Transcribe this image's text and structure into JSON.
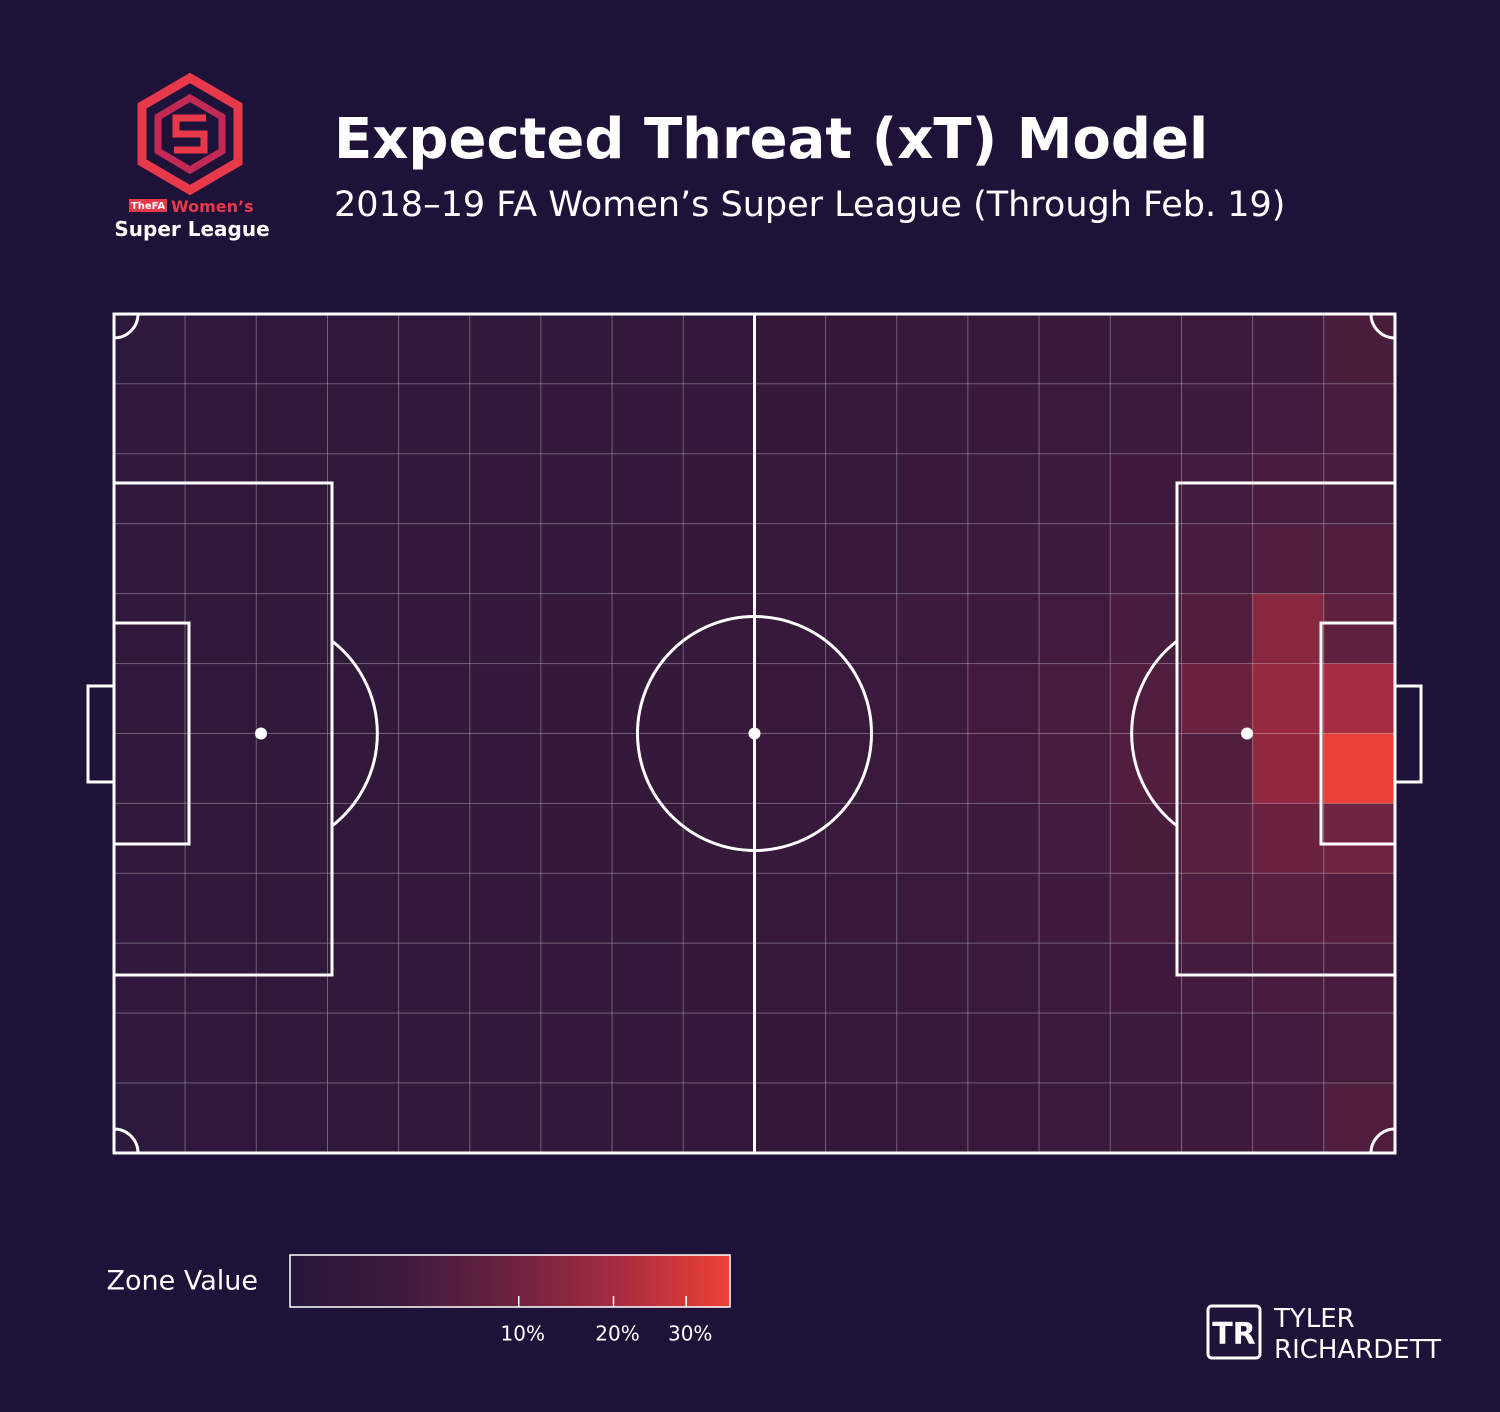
{
  "chart_data": {
    "type": "heatmap",
    "title": "Expected Threat (xT) Model",
    "subtitle": "2018–19 FA Women’s Super League (Through Feb. 19)",
    "values": [
      [
        0.3,
        0.4,
        0.4,
        0.5,
        0.5,
        0.6,
        0.6,
        0.7,
        0.7,
        0.9,
        1.0,
        1.2,
        1.3,
        1.5,
        1.7,
        2.0,
        2.4,
        4.0
      ],
      [
        0.4,
        0.4,
        0.5,
        0.5,
        0.6,
        0.6,
        0.7,
        0.8,
        0.8,
        1.0,
        1.1,
        1.3,
        1.5,
        1.7,
        2.0,
        2.4,
        3.0,
        3.5
      ],
      [
        0.4,
        0.5,
        0.5,
        0.6,
        0.6,
        0.7,
        0.8,
        0.8,
        0.9,
        1.1,
        1.3,
        1.5,
        1.7,
        2.0,
        2.5,
        3.0,
        3.5,
        3.8
      ],
      [
        0.4,
        0.5,
        0.5,
        0.6,
        0.7,
        0.7,
        0.8,
        0.9,
        1.0,
        1.2,
        1.4,
        1.7,
        2.0,
        2.4,
        3.0,
        3.6,
        4.5,
        4.5
      ],
      [
        0.5,
        0.5,
        0.6,
        0.6,
        0.7,
        0.8,
        0.9,
        1.0,
        1.1,
        1.3,
        1.6,
        1.9,
        2.3,
        2.8,
        3.5,
        5.0,
        14.0,
        7.0
      ],
      [
        0.5,
        0.5,
        0.6,
        0.7,
        0.7,
        0.8,
        0.9,
        1.0,
        1.2,
        1.5,
        1.8,
        2.2,
        2.8,
        3.5,
        4.5,
        9.0,
        17.0,
        20.0
      ],
      [
        0.5,
        0.5,
        0.6,
        0.7,
        0.7,
        0.8,
        0.9,
        1.0,
        1.2,
        1.5,
        1.8,
        2.2,
        2.8,
        3.5,
        5.0,
        4.5,
        16.0,
        36.0
      ],
      [
        0.5,
        0.5,
        0.6,
        0.6,
        0.7,
        0.8,
        0.9,
        1.0,
        1.1,
        1.3,
        1.6,
        1.9,
        2.3,
        3.0,
        4.0,
        6.0,
        9.0,
        10.0
      ],
      [
        0.4,
        0.5,
        0.5,
        0.6,
        0.7,
        0.7,
        0.8,
        0.9,
        1.0,
        1.2,
        1.4,
        1.7,
        2.0,
        2.5,
        3.5,
        4.5,
        6.0,
        5.5
      ],
      [
        0.4,
        0.5,
        0.5,
        0.6,
        0.6,
        0.7,
        0.8,
        0.8,
        0.9,
        1.1,
        1.3,
        1.5,
        1.8,
        2.2,
        2.5,
        3.0,
        3.5,
        3.6
      ],
      [
        0.4,
        0.4,
        0.5,
        0.5,
        0.6,
        0.6,
        0.7,
        0.8,
        0.8,
        1.0,
        1.1,
        1.3,
        1.5,
        1.8,
        2.1,
        2.5,
        3.0,
        3.3
      ],
      [
        0.3,
        0.4,
        0.4,
        0.5,
        0.5,
        0.6,
        0.6,
        0.7,
        0.7,
        0.9,
        1.0,
        1.2,
        1.4,
        1.6,
        2.0,
        2.4,
        3.0,
        4.5
      ]
    ],
    "colors": [
      "#25173a",
      "#3d1a3c",
      "#6b2240",
      "#a82c40",
      "#ef4136"
    ],
    "zscale": "sqrt",
    "zlim": [
      0,
      37
    ],
    "zticks": [
      {
        "value": 10,
        "label": "10%"
      },
      {
        "value": 20,
        "label": "20%"
      },
      {
        "value": 30,
        "label": "30%"
      }
    ],
    "colorbar_label": "Zone Value",
    "grid": true
  },
  "branding": {
    "fa": "TheFA",
    "league_1": "Women’s",
    "league_2": "Super League",
    "credit_mark": "TR",
    "credit_1": "TYLER",
    "credit_2": "RICHARDETT"
  }
}
